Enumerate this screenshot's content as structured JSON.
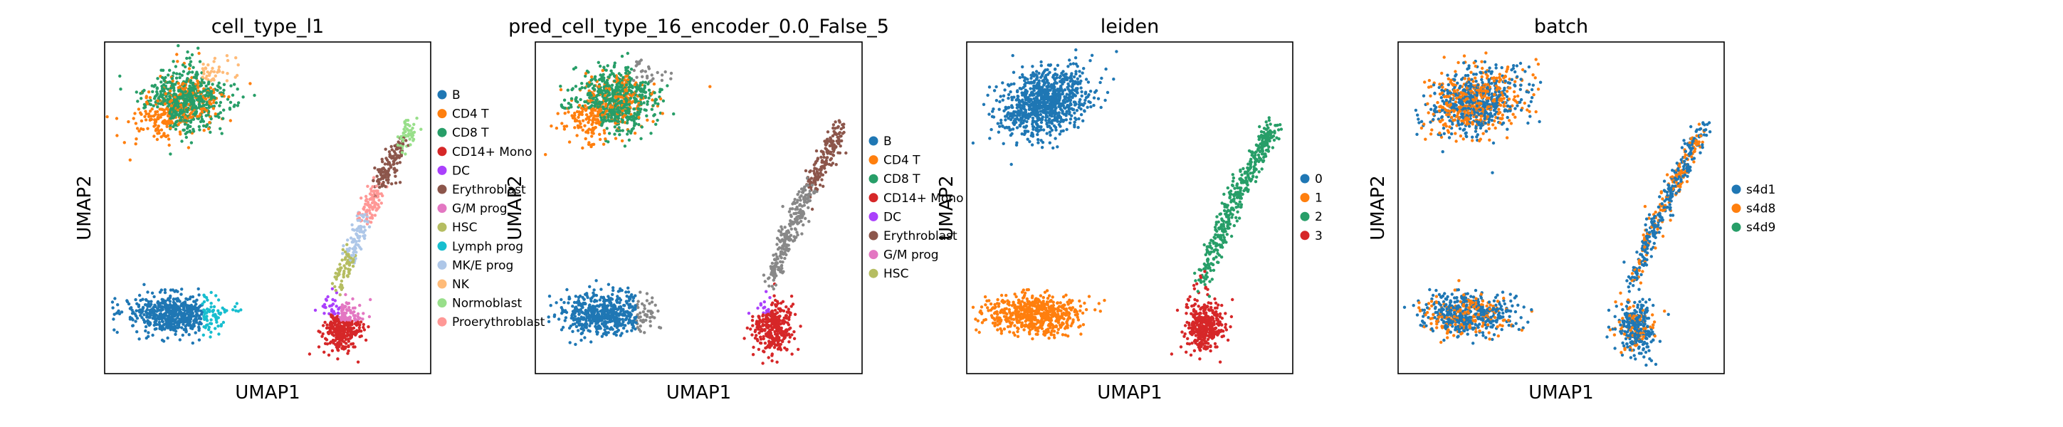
{
  "chart_data": [
    {
      "type": "scatter",
      "title": "cell_type_l1",
      "xlabel": "UMAP1",
      "ylabel": "UMAP2",
      "grid": false,
      "legend_position": "right",
      "legend": [
        {
          "name": "B",
          "color": "#1f77b4"
        },
        {
          "name": "CD4 T",
          "color": "#ff7f0e"
        },
        {
          "name": "CD8 T",
          "color": "#279e68"
        },
        {
          "name": "CD14+ Mono",
          "color": "#d62728"
        },
        {
          "name": "DC",
          "color": "#aa40fc"
        },
        {
          "name": "Erythroblast",
          "color": "#8c564b"
        },
        {
          "name": "G/M prog",
          "color": "#e377c2"
        },
        {
          "name": "HSC",
          "color": "#b5bd61"
        },
        {
          "name": "Lymph prog",
          "color": "#17becf"
        },
        {
          "name": "MK/E prog",
          "color": "#aec7e8"
        },
        {
          "name": "NK",
          "color": "#ffbb78"
        },
        {
          "name": "Normoblast",
          "color": "#98df8a"
        },
        {
          "name": "Proerythroblast",
          "color": "#ff9896"
        }
      ]
    },
    {
      "type": "scatter",
      "title": "pred_cell_type_16_encoder_0.0_False_5",
      "xlabel": "UMAP1",
      "ylabel": "UMAP2",
      "grid": false,
      "legend_position": "right",
      "legend": [
        {
          "name": "B",
          "color": "#1f77b4"
        },
        {
          "name": "CD4 T",
          "color": "#ff7f0e"
        },
        {
          "name": "CD8 T",
          "color": "#279e68"
        },
        {
          "name": "CD14+ Mono",
          "color": "#d62728"
        },
        {
          "name": "DC",
          "color": "#aa40fc"
        },
        {
          "name": "Erythroblast",
          "color": "#8c564b"
        },
        {
          "name": "G/M prog",
          "color": "#e377c2"
        },
        {
          "name": "HSC",
          "color": "#b5bd61"
        }
      ]
    },
    {
      "type": "scatter",
      "title": "leiden",
      "xlabel": "UMAP1",
      "ylabel": "UMAP2",
      "grid": false,
      "legend_position": "right",
      "legend": [
        {
          "name": "0",
          "color": "#1f77b4"
        },
        {
          "name": "1",
          "color": "#ff7f0e"
        },
        {
          "name": "2",
          "color": "#279e68"
        },
        {
          "name": "3",
          "color": "#d62728"
        }
      ]
    },
    {
      "type": "scatter",
      "title": "batch",
      "xlabel": "UMAP1",
      "ylabel": "UMAP2",
      "grid": false,
      "legend_position": "right",
      "legend": [
        {
          "name": "s4d1",
          "color": "#1f77b4"
        },
        {
          "name": "s4d8",
          "color": "#ff7f0e"
        },
        {
          "name": "s4d9",
          "color": "#279e68"
        }
      ]
    }
  ]
}
